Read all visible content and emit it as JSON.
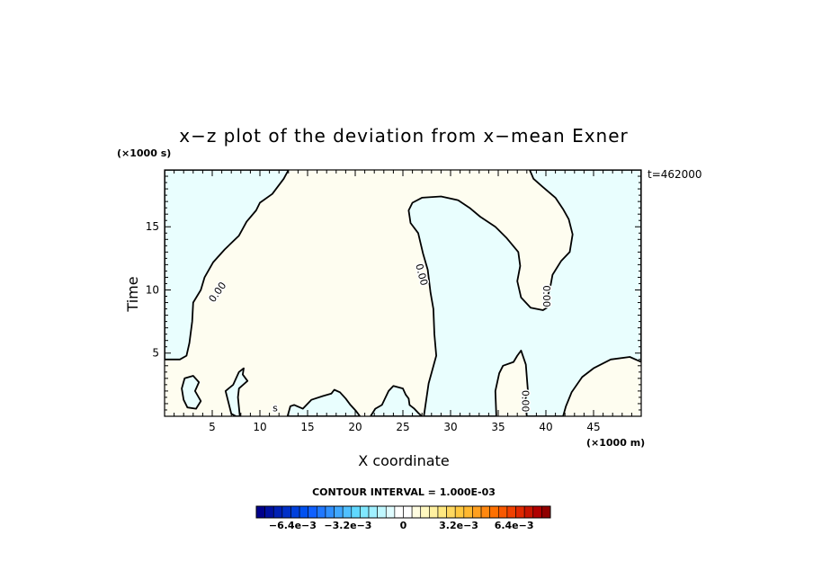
{
  "chart_data": {
    "type": "contour",
    "title": "x−z plot of the deviation from x−mean Exner",
    "xlabel": "X coordinate",
    "ylabel": "Time",
    "x_unit": "(×1000 m)",
    "y_unit": "(×1000 s)",
    "time_stamp": "t=462000",
    "xlim": [
      0,
      50
    ],
    "ylim": [
      0,
      19.5
    ],
    "x_ticks": [
      5,
      10,
      15,
      20,
      25,
      30,
      35,
      40,
      45
    ],
    "y_ticks": [
      5,
      10,
      15
    ],
    "contour_label": "0.00",
    "contour_interval": "CONTOUR INTERVAL = 1.000E-03",
    "colorbar_ticks": [
      "−6.4e−3",
      "−3.2e−3",
      "0",
      "3.2e−3",
      "6.4e−3"
    ],
    "colors": {
      "positive_fill": "#fefdf0",
      "negative_fill": "#e9fefe",
      "contour_line": "#000000"
    },
    "colorbar_colors": [
      "#00008b",
      "#0010a0",
      "#0020b4",
      "#0030c8",
      "#0040dc",
      "#0050f0",
      "#1060ff",
      "#2078ff",
      "#3090ff",
      "#40a8ff",
      "#50c0ff",
      "#60d8ff",
      "#80e8ff",
      "#a0f0ff",
      "#c0f8ff",
      "#e0fcff",
      "#ffffff",
      "#ffffff",
      "#fffce0",
      "#fff8c0",
      "#fff0a0",
      "#ffe880",
      "#ffd860",
      "#ffc840",
      "#ffb830",
      "#ffa020",
      "#ff8810",
      "#ff7000",
      "#f85800",
      "#f04000",
      "#e02800",
      "#c81400",
      "#b00000",
      "#900000"
    ],
    "negative_regions": [
      [
        [
          0,
          19.5
        ],
        [
          13,
          19.5
        ],
        [
          12.5,
          18.8
        ],
        [
          11.3,
          17.6
        ],
        [
          10,
          16.9
        ],
        [
          9.6,
          16.3
        ],
        [
          8.6,
          15.4
        ],
        [
          7.8,
          14.3
        ],
        [
          6.3,
          13.2
        ],
        [
          5.1,
          12.2
        ],
        [
          4.2,
          11
        ],
        [
          3.8,
          10
        ],
        [
          3,
          9
        ],
        [
          2.9,
          7.5
        ],
        [
          2.6,
          5.8
        ],
        [
          2.3,
          4.8
        ],
        [
          1.6,
          4.5
        ],
        [
          0,
          4.5
        ]
      ],
      [
        [
          2,
          1.3
        ],
        [
          1.8,
          2.2
        ],
        [
          2.1,
          3.0
        ],
        [
          3,
          3.2
        ],
        [
          3.6,
          2.7
        ],
        [
          3.2,
          2.0
        ],
        [
          3.8,
          1.2
        ],
        [
          3.3,
          0.6
        ],
        [
          2.4,
          0.7
        ]
      ],
      [
        [
          7.9,
          0
        ],
        [
          7.7,
          1.5
        ],
        [
          7.8,
          2.2
        ],
        [
          8.7,
          2.8
        ],
        [
          8.2,
          3.3
        ],
        [
          8.3,
          3.8
        ],
        [
          7.8,
          3.5
        ],
        [
          7.2,
          2.5
        ],
        [
          6.4,
          2.0
        ],
        [
          7.0,
          0.2
        ],
        [
          7.5,
          0
        ]
      ],
      [
        [
          12.9,
          0
        ],
        [
          13.2,
          0.8
        ],
        [
          13.6,
          0.9
        ],
        [
          14.5,
          0.6
        ],
        [
          15.4,
          1.3
        ],
        [
          16.6,
          1.6
        ],
        [
          17.5,
          1.8
        ],
        [
          17.8,
          2.1
        ],
        [
          18.4,
          1.9
        ],
        [
          19,
          1.4
        ],
        [
          19.5,
          0.9
        ],
        [
          20.1,
          0.4
        ],
        [
          20.5,
          0
        ]
      ],
      [
        [
          21.6,
          0
        ],
        [
          22.1,
          0.6
        ],
        [
          22.8,
          0.9
        ],
        [
          23.5,
          2.0
        ],
        [
          24.0,
          2.4
        ],
        [
          25.0,
          2.2
        ],
        [
          25.3,
          1.7
        ],
        [
          25.6,
          1.4
        ],
        [
          25.7,
          0.9
        ],
        [
          26.2,
          0.6
        ],
        [
          26.7,
          0.2
        ],
        [
          27.0,
          0
        ]
      ],
      [
        [
          27.2,
          0
        ],
        [
          27.7,
          2.6
        ],
        [
          28.5,
          4.8
        ],
        [
          28.3,
          6.5
        ],
        [
          28.2,
          8.5
        ],
        [
          27.9,
          9.8
        ],
        [
          27.6,
          11.6
        ],
        [
          27.1,
          12.9
        ],
        [
          26.6,
          14.5
        ],
        [
          25.8,
          15.3
        ],
        [
          25.6,
          16.3
        ],
        [
          26.0,
          16.9
        ],
        [
          27.0,
          17.3
        ],
        [
          29.0,
          17.4
        ],
        [
          30.8,
          17.1
        ],
        [
          32.0,
          16.5
        ],
        [
          33.1,
          15.8
        ],
        [
          34.7,
          15.0
        ],
        [
          35.9,
          14.1
        ],
        [
          37.1,
          13.0
        ],
        [
          37.3,
          11.9
        ],
        [
          37.0,
          10.7
        ],
        [
          37.4,
          9.4
        ],
        [
          38.4,
          8.6
        ],
        [
          39.7,
          8.4
        ],
        [
          40.1,
          8.6
        ],
        [
          40.2,
          9.5
        ],
        [
          40.5,
          10.4
        ],
        [
          40.7,
          11.2
        ],
        [
          41.6,
          12.3
        ],
        [
          42.5,
          13.0
        ],
        [
          42.8,
          14.4
        ],
        [
          42.4,
          15.6
        ],
        [
          41.8,
          16.4
        ],
        [
          41.0,
          17.3
        ],
        [
          39.6,
          18.2
        ],
        [
          38.7,
          18.8
        ],
        [
          38.3,
          19.5
        ],
        [
          50,
          19.5
        ],
        [
          50,
          4.3
        ],
        [
          48.8,
          4.7
        ],
        [
          46.8,
          4.5
        ],
        [
          45.0,
          3.8
        ],
        [
          43.8,
          3.1
        ],
        [
          42.7,
          1.9
        ],
        [
          42.1,
          0.8
        ],
        [
          41.8,
          0
        ],
        [
          38.0,
          0
        ],
        [
          37.8,
          1.2
        ],
        [
          38.1,
          2.1
        ],
        [
          37.9,
          4.1
        ],
        [
          37.4,
          5.2
        ],
        [
          37.0,
          4.8
        ],
        [
          36.6,
          4.3
        ],
        [
          35.5,
          4.0
        ],
        [
          35.1,
          3.4
        ],
        [
          34.7,
          2.0
        ],
        [
          34.8,
          0
        ]
      ]
    ],
    "label_positions": [
      {
        "x": 5.6,
        "y": 9.8,
        "text": "0.00",
        "angle": -55
      },
      {
        "x": 26.9,
        "y": 11.2,
        "text": "0.00",
        "angle": 75
      },
      {
        "x": 40.0,
        "y": 9.5,
        "text": "0.00",
        "angle": 90
      },
      {
        "x": 37.8,
        "y": 1.2,
        "text": "0.00",
        "angle": 90
      },
      {
        "x": 11.6,
        "y": 0.6,
        "text": "s",
        "angle": 0
      }
    ]
  }
}
